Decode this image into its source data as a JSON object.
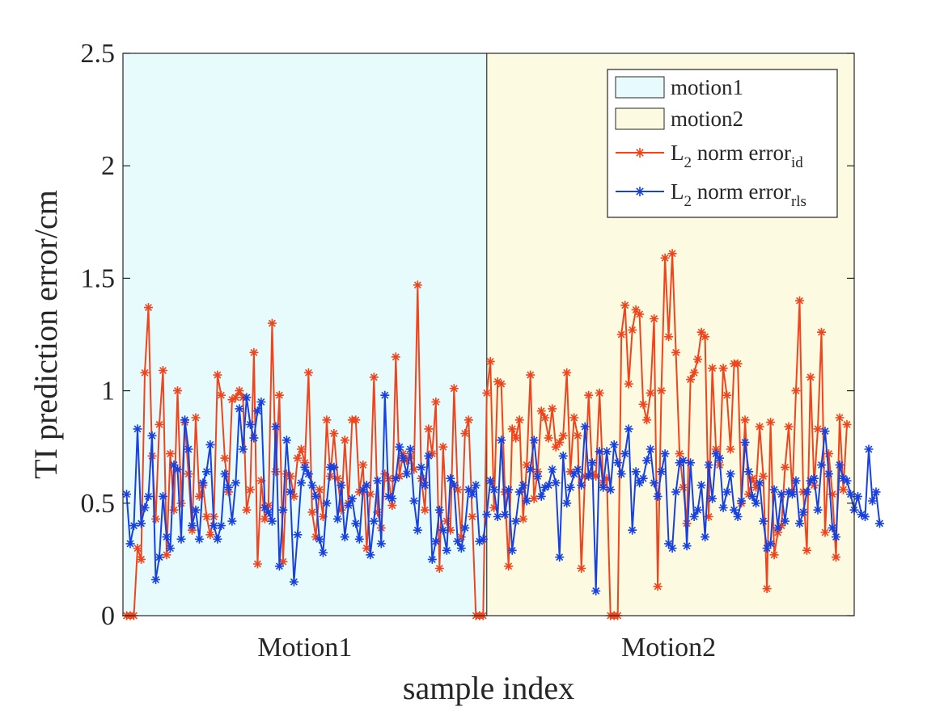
{
  "chart_data": {
    "type": "line",
    "xlabel": "sample index",
    "ylabel": "TI prediction error/cm",
    "ylim": [
      0,
      2.5
    ],
    "yticks": [
      0,
      0.5,
      1,
      1.5,
      2,
      2.5
    ],
    "ytick_labels": [
      "0",
      "0.5",
      "1",
      "1.5",
      "2",
      "2.5"
    ],
    "xlim": [
      0,
      201
    ],
    "category_labels": [
      {
        "label": "Motion1",
        "x": 50
      },
      {
        "label": "Motion2",
        "x": 150
      }
    ],
    "regions": [
      {
        "name": "motion1",
        "x_start": 0,
        "x_end": 100,
        "color": "#E8FBFC"
      },
      {
        "name": "motion2",
        "x_start": 100,
        "x_end": 201,
        "color": "#FCFBE2"
      }
    ],
    "legend_position": "top-right",
    "legend": [
      {
        "kind": "patch",
        "label": "motion1",
        "sub": "",
        "color": "#E8FBFC"
      },
      {
        "kind": "patch",
        "label": "motion2",
        "sub": "",
        "color": "#FCFBE2"
      },
      {
        "kind": "line",
        "label": "L",
        "sub1": "2",
        "rest": " norm error",
        "sub": "id",
        "color": "#F0441C"
      },
      {
        "kind": "line",
        "label": "L",
        "sub1": "2",
        "rest": " norm error",
        "sub": "rls",
        "color": "#1741E0"
      }
    ],
    "series": [
      {
        "name": "L2 norm error id",
        "color": "#F0441C",
        "marker": "*",
        "values": [
          0,
          0,
          0,
          0.3,
          0.25,
          1.08,
          1.37,
          0.71,
          0.43,
          0.85,
          1.09,
          0.27,
          0.72,
          0.47,
          1.0,
          0.5,
          0.86,
          0.63,
          0.38,
          0.88,
          0.53,
          0.58,
          0.44,
          0.36,
          0.44,
          1.07,
          0.98,
          0.7,
          0.55,
          0.96,
          0.97,
          1.0,
          0.97,
          0.47,
          0.56,
          1.17,
          0.23,
          0.6,
          0.43,
          0.49,
          1.3,
          0.64,
          0.98,
          0.24,
          0.63,
          0.62,
          0.53,
          0.7,
          0.74,
          0.68,
          1.08,
          0.46,
          0.35,
          0.56,
          0.44,
          0.87,
          0.62,
          0.81,
          0.61,
          0.47,
          0.78,
          0.5,
          0.87,
          0.87,
          0.55,
          0.67,
          0.3,
          0.54,
          1.06,
          0.46,
          0.39,
          0.63,
          0.61,
          0.49,
          1.15,
          0.62,
          0.72,
          0.69,
          0.71,
          0.65,
          1.47,
          0.61,
          0.47,
          0.83,
          0.72,
          0.95,
          0.21,
          0.75,
          0.42,
          0.38,
          1.01,
          0.56,
          0.35,
          0.81,
          0.87,
          0.44,
          0,
          0,
          0,
          0.99,
          1.13,
          0.48,
          1.04,
          1.03,
          0.55,
          0.22,
          0.83,
          0.79,
          0.87,
          0.43,
          0.67,
          1.07,
          0.52,
          0.64,
          0.91,
          0.88,
          0.79,
          0.92,
          0.75,
          0.77,
          0.8,
          1.08,
          0.64,
          0.88,
          0.8,
          0.21,
          0.62,
          0.98,
          0.63,
          0.62,
          0.99,
          0.59,
          0.61,
          0.0,
          0.0,
          0.0,
          1.25,
          1.38,
          1.03,
          1.27,
          1.36,
          1.34,
          0.94,
          0.87,
          0.99,
          1.32,
          0.13,
          1.0,
          1.59,
          1.24,
          1.61,
          1.17,
          0.72,
          0.57,
          0.41,
          1.05,
          1.08,
          1.14,
          1.26,
          1.24,
          0.44,
          1.1,
          0.74,
          0.67,
          1.1,
          0.98,
          0.74,
          1.12,
          1.12,
          0.5,
          0.87,
          0.54,
          0.61,
          0.57,
          0.84,
          0.62,
          0.12,
          0.86,
          0.27,
          0.37,
          0.4,
          0.66,
          0.84,
          0.55,
          1.0,
          1.4,
          0.55,
          0.29,
          1.06,
          0.58,
          0.83,
          1.26,
          0.37,
          0.72,
          0.54,
          0.26,
          0.88,
          0.56,
          0.85
        ]
      },
      {
        "name": "L2 norm error rls",
        "color": "#1741E0",
        "marker": "*",
        "values": [
          0.54,
          0.32,
          0.4,
          0.83,
          0.41,
          0.48,
          0.53,
          0.8,
          0.16,
          0.26,
          0.53,
          0.35,
          0.3,
          0.67,
          0.65,
          0.34,
          0.87,
          0.74,
          0.4,
          0.47,
          0.34,
          0.59,
          0.64,
          0.76,
          0.4,
          0.34,
          0.4,
          0.63,
          0.57,
          0.42,
          0.59,
          0.92,
          0.74,
          0.97,
          0.85,
          0.79,
          0.91,
          0.95,
          0.48,
          0.46,
          0.42,
          0.84,
          0.22,
          0.47,
          0.78,
          0.55,
          0.15,
          0.36,
          0.59,
          0.66,
          0.63,
          0.58,
          0.53,
          0.34,
          0.28,
          0.5,
          0.66,
          0.66,
          0.43,
          0.58,
          0.35,
          0.49,
          0.52,
          0.41,
          0.34,
          0.56,
          0.58,
          0.27,
          0.42,
          0.6,
          0.32,
          0.98,
          0.53,
          0.52,
          0.61,
          0.75,
          0.7,
          0.63,
          0.74,
          0.51,
          0.38,
          0.66,
          0.58,
          0.71,
          0.25,
          0.33,
          0.47,
          0.38,
          0.29,
          0.61,
          0.58,
          0.33,
          0.3,
          0.39,
          0.56,
          0.54,
          0.58,
          0.33,
          0.34,
          0.45,
          0.6,
          0.56,
          0.44,
          0.78,
          0.45,
          0.56,
          0.29,
          0.42,
          0.55,
          0.58,
          0.51,
          0.65,
          0.78,
          0.62,
          0.53,
          0.57,
          0.58,
          0.65,
          0.59,
          0.26,
          0.71,
          0.5,
          0.57,
          0.63,
          0.65,
          0.58,
          0.84,
          0.62,
          0.68,
          0.11,
          0.73,
          0.57,
          0.73,
          0.56,
          0.76,
          0.68,
          0.63,
          0.72,
          0.83,
          0.38,
          0.64,
          0.59,
          0.61,
          0.69,
          0.74,
          0.59,
          0.53,
          0.64,
          0.72,
          0.32,
          0.3,
          0.55,
          0.68,
          0.69,
          0.31,
          0.68,
          0.44,
          0.47,
          0.58,
          0.35,
          0.67,
          0.52,
          0.72,
          0.7,
          0.48,
          0.55,
          0.63,
          0.47,
          0.44,
          0.51,
          0.77,
          0.64,
          0.53,
          0.5,
          0.59,
          0.42,
          0.3,
          0.32,
          0.56,
          0.39,
          0.54,
          0.42,
          0.55,
          0.54,
          0.6,
          0.41,
          0.46,
          0.55,
          0.6,
          0.61,
          0.47,
          0.67,
          0.82,
          0.63,
          0.39,
          0.35,
          0.67,
          0.61,
          0.6,
          0.54,
          0.47,
          0.53,
          0.45,
          0.44,
          0.74,
          0.51,
          0.55,
          0.41
        ]
      }
    ]
  }
}
